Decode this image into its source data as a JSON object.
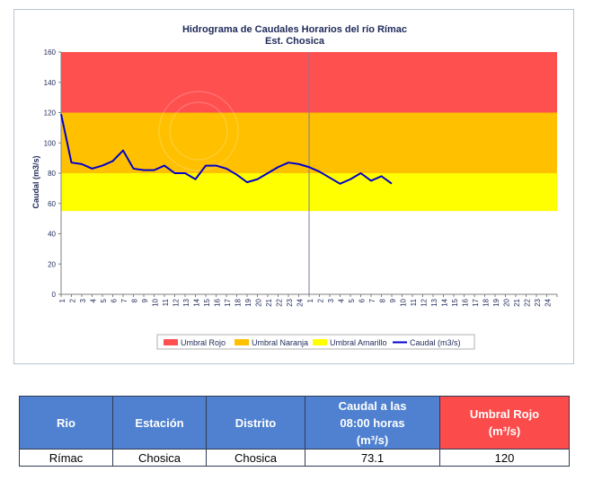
{
  "chart_data": {
    "type": "line",
    "title": "Hidrograma de Caudales Horarios del río Rímac",
    "subtitle": "Est. Chosica",
    "ylabel": "Caudal  (m3/s)",
    "ylim": [
      0,
      160
    ],
    "yticks": [
      "0",
      "20",
      "40",
      "60",
      "80",
      "100",
      "120",
      "140",
      "160"
    ],
    "xticks": [
      "1",
      "2",
      "3",
      "4",
      "5",
      "6",
      "7",
      "8",
      "9",
      "10",
      "11",
      "12",
      "13",
      "14",
      "15",
      "16",
      "17",
      "18",
      "19",
      "20",
      "21",
      "22",
      "23",
      "24",
      "1",
      "2",
      "3",
      "4",
      "5",
      "6",
      "7",
      "8",
      "9",
      "10",
      "11",
      "12",
      "13",
      "14",
      "15",
      "16",
      "17",
      "18",
      "19",
      "20",
      "21",
      "22",
      "23",
      "24"
    ],
    "bands": [
      {
        "name": "Umbral Rojo",
        "from": 120,
        "to": 160,
        "color": "#ff5050"
      },
      {
        "name": "Umbral Naranja",
        "from": 80,
        "to": 120,
        "color": "#ffc000"
      },
      {
        "name": "Umbral Amarillo",
        "from": 55,
        "to": 80,
        "color": "#ffff00"
      }
    ],
    "series": [
      {
        "name": "Caudal (m3/s)",
        "color": "#0000cc",
        "values": [
          119,
          87,
          86,
          83,
          85,
          88,
          95,
          83,
          82,
          82,
          85,
          80,
          80,
          76,
          85,
          85,
          83,
          79,
          74,
          76,
          80,
          84,
          87,
          86,
          84,
          81,
          77,
          73,
          76,
          80,
          75,
          78,
          73.1
        ]
      }
    ],
    "legend_position": "bottom",
    "grid": false
  },
  "table": {
    "headers": [
      "Rio",
      "Estación",
      "Distrito",
      "Caudal a las 08:00 horas (m³/s)",
      "Umbral Rojo (m³/s)"
    ],
    "header_caudal_line1": "Caudal a las",
    "header_caudal_line2": "08:00 horas",
    "header_caudal_line3": "(m³/s)",
    "header_rojo_line1": "Umbral Rojo",
    "header_rojo_line2": "(m³/s)",
    "row": [
      "Rímac",
      "Chosica",
      "Chosica",
      "73.1",
      "120"
    ]
  },
  "colors": {
    "header_blue": "#4f81d0",
    "header_red": "#fb4b4b"
  }
}
